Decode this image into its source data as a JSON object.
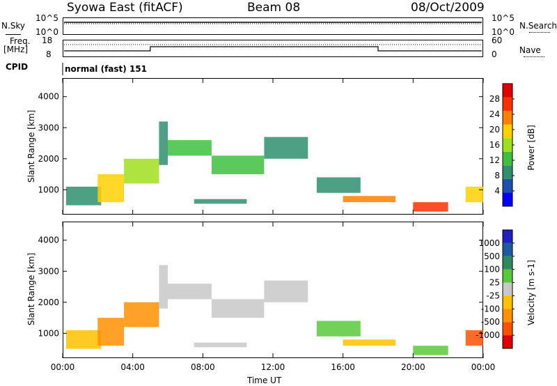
{
  "header": {
    "title_left": "Syowa East (fitACF)",
    "title_center": "Beam 08",
    "title_right": "08/Oct/2009"
  },
  "noise_panel": {
    "left_label": "N.Sky",
    "right_label": "N.Search",
    "left_ticks": [
      "10^5",
      "10^0"
    ],
    "right_ticks": [
      "10^5",
      "10^0"
    ]
  },
  "freq_panel": {
    "left_label_line1": "Freq.",
    "left_label_line2": "[MHz]",
    "right_label": "Nave",
    "left_ticks": [
      "18",
      "8"
    ],
    "right_ticks": [
      "60",
      "0"
    ]
  },
  "cpid_panel": {
    "label": "CPID",
    "text": "normal (fast) 151"
  },
  "x_axis": {
    "label": "Time UT",
    "ticks": [
      "00:00",
      "04:00",
      "08:00",
      "12:00",
      "16:00",
      "20:00",
      "00:00"
    ]
  },
  "colors": {
    "power": [
      "#0000ff",
      "#1f4faf",
      "#2f8f6f",
      "#3fbf3f",
      "#9fdf1f",
      "#ffd000",
      "#ff8000",
      "#ff3000",
      "#e00000"
    ],
    "velocity": [
      "#e00000",
      "#ff5000",
      "#ff9000",
      "#ffc000",
      "#c8c8c8",
      "#5ac83c",
      "#2e8c5a",
      "#1f5aa0",
      "#2020c0"
    ]
  },
  "chart_data": [
    {
      "type": "heatmap",
      "title": "",
      "xlabel": "Time UT",
      "ylabel": "Slant Range [km]",
      "xlim": [
        "00:00",
        "24:00"
      ],
      "ylim": [
        200,
        4600
      ],
      "y_ticks": [
        "1000",
        "2000",
        "3000",
        "4000"
      ],
      "colorbar_label": "Power [dB]",
      "colorbar_ticks": [
        "4",
        "8",
        "12",
        "16",
        "20",
        "24",
        "28"
      ],
      "colorbar_range": [
        0,
        32
      ],
      "regions": [
        {
          "t_start": 0.2,
          "t_end": 2.2,
          "r_low": 500,
          "r_high": 1100,
          "value": 10
        },
        {
          "t_start": 2.0,
          "t_end": 3.5,
          "r_low": 600,
          "r_high": 1500,
          "value": 18
        },
        {
          "t_start": 3.5,
          "t_end": 5.5,
          "r_low": 1200,
          "r_high": 2000,
          "value": 16
        },
        {
          "t_start": 5.5,
          "t_end": 6.0,
          "r_low": 1800,
          "r_high": 3200,
          "value": 8
        },
        {
          "t_start": 6.0,
          "t_end": 8.5,
          "r_low": 2100,
          "r_high": 2600,
          "value": 14
        },
        {
          "t_start": 8.5,
          "t_end": 11.5,
          "r_low": 1500,
          "r_high": 2100,
          "value": 14
        },
        {
          "t_start": 11.5,
          "t_end": 14.0,
          "r_low": 2000,
          "r_high": 2700,
          "value": 10
        },
        {
          "t_start": 7.5,
          "t_end": 10.5,
          "r_low": 550,
          "r_high": 700,
          "value": 8
        },
        {
          "t_start": 14.5,
          "t_end": 17.0,
          "r_low": 900,
          "r_high": 1400,
          "value": 8
        },
        {
          "t_start": 16.0,
          "t_end": 19.0,
          "r_low": 600,
          "r_high": 800,
          "value": 22
        },
        {
          "t_start": 20.0,
          "t_end": 22.0,
          "r_low": 300,
          "r_high": 600,
          "value": 26
        },
        {
          "t_start": 23.0,
          "t_end": 24.0,
          "r_low": 600,
          "r_high": 1100,
          "value": 18
        }
      ]
    },
    {
      "type": "heatmap",
      "title": "",
      "xlabel": "Time UT",
      "ylabel": "Slant Range [km]",
      "xlim": [
        "00:00",
        "24:00"
      ],
      "ylim": [
        200,
        4600
      ],
      "y_ticks": [
        "1000",
        "2000",
        "3000",
        "4000"
      ],
      "colorbar_label": "Velocity [m s-1]",
      "colorbar_ticks": [
        "1000",
        "500",
        "100",
        "25",
        "-25",
        "-100",
        "-500",
        "-1000"
      ],
      "colorbar_range": [
        -1000,
        1000
      ],
      "regions": [
        {
          "t_start": 0.2,
          "t_end": 2.2,
          "r_low": 500,
          "r_high": 1100,
          "value": -300
        },
        {
          "t_start": 2.0,
          "t_end": 3.5,
          "r_low": 600,
          "r_high": 1500,
          "value": -500
        },
        {
          "t_start": 3.5,
          "t_end": 5.5,
          "r_low": 1200,
          "r_high": 2000,
          "value": -400
        },
        {
          "t_start": 5.5,
          "t_end": 6.0,
          "r_low": 1800,
          "r_high": 3200,
          "value": 0
        },
        {
          "t_start": 6.0,
          "t_end": 8.5,
          "r_low": 2100,
          "r_high": 2600,
          "value": 50
        },
        {
          "t_start": 8.5,
          "t_end": 11.5,
          "r_low": 1500,
          "r_high": 2100,
          "value": 0
        },
        {
          "t_start": 11.5,
          "t_end": 14.0,
          "r_low": 2000,
          "r_high": 2700,
          "value": 0
        },
        {
          "t_start": 7.5,
          "t_end": 10.5,
          "r_low": 550,
          "r_high": 700,
          "value": 0
        },
        {
          "t_start": 14.5,
          "t_end": 17.0,
          "r_low": 900,
          "r_high": 1400,
          "value": 200
        },
        {
          "t_start": 16.0,
          "t_end": 19.0,
          "r_low": 600,
          "r_high": 800,
          "value": -150
        },
        {
          "t_start": 20.0,
          "t_end": 22.0,
          "r_low": 300,
          "r_high": 600,
          "value": 150
        },
        {
          "t_start": 23.0,
          "t_end": 24.0,
          "r_low": 600,
          "r_high": 1100,
          "value": -600
        }
      ]
    }
  ]
}
